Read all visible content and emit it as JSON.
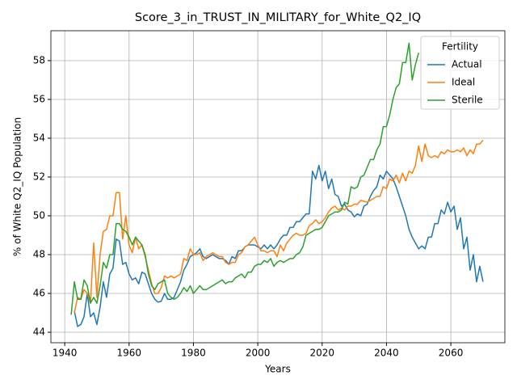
{
  "chart_data": {
    "type": "line",
    "title": "Score_3_in_TRUST_IN_MILITARY_for_White_Q2_IQ",
    "xlabel": "Years",
    "ylabel": "% of White Q2_IQ Population",
    "legend_title": "Fertility",
    "legend": "upper right",
    "grid": true,
    "xlim": [
      1935.7,
      2076.8
    ],
    "ylim": [
      43.46,
      59.54
    ],
    "xticks": [
      1940,
      1960,
      1980,
      2000,
      2020,
      2040,
      2060
    ],
    "yticks": [
      44,
      46,
      48,
      50,
      52,
      54,
      56,
      58
    ],
    "x": [
      1942,
      1943,
      1944,
      1945,
      1946,
      1947,
      1948,
      1949,
      1950,
      1951,
      1952,
      1953,
      1954,
      1955,
      1956,
      1957,
      1958,
      1959,
      1960,
      1961,
      1962,
      1963,
      1964,
      1965,
      1966,
      1967,
      1968,
      1969,
      1970,
      1971,
      1972,
      1973,
      1974,
      1975,
      1976,
      1977,
      1978,
      1979,
      1980,
      1981,
      1982,
      1983,
      1984,
      1985,
      1986,
      1987,
      1988,
      1989,
      1990,
      1991,
      1992,
      1993,
      1994,
      1995,
      1996,
      1997,
      1998,
      1999,
      2000,
      2001,
      2002,
      2003,
      2004,
      2005,
      2006,
      2007,
      2008,
      2009,
      2010,
      2011,
      2012,
      2013,
      2014,
      2015,
      2016,
      2017,
      2018,
      2019,
      2020,
      2021,
      2022,
      2023,
      2024,
      2025,
      2026,
      2027,
      2028,
      2029,
      2030,
      2031,
      2032,
      2033,
      2034,
      2035,
      2036,
      2037,
      2038,
      2039,
      2040,
      2041,
      2042,
      2043,
      2044,
      2045,
      2046,
      2047,
      2048,
      2049,
      2050,
      2051,
      2052,
      2053,
      2054,
      2055,
      2056,
      2057,
      2058,
      2059,
      2060,
      2061,
      2062,
      2063,
      2064,
      2065,
      2066,
      2067,
      2068,
      2069,
      2070
    ],
    "series": [
      {
        "name": "Actual",
        "color": "#1f77b4",
        "values": [
          null,
          45.1,
          44.3,
          44.4,
          44.8,
          46.0,
          44.8,
          45.0,
          44.4,
          45.3,
          46.6,
          45.8,
          47.0,
          47.3,
          48.8,
          48.7,
          47.5,
          47.6,
          47.0,
          46.7,
          46.8,
          46.5,
          47.1,
          47.0,
          46.5,
          46.0,
          45.7,
          45.55,
          45.6,
          46.0,
          45.7,
          45.7,
          45.8,
          46.2,
          46.6,
          47.2,
          47.5,
          47.9,
          48.0,
          48.1,
          48.3,
          47.9,
          47.8,
          47.9,
          48.0,
          47.9,
          47.8,
          47.8,
          47.7,
          47.5,
          47.9,
          47.8,
          48.2,
          48.2,
          48.4,
          48.5,
          48.5,
          48.5,
          48.4,
          48.3,
          48.5,
          48.3,
          48.5,
          48.3,
          48.5,
          48.8,
          49.0,
          49.0,
          49.4,
          49.4,
          49.7,
          49.7,
          49.9,
          50.1,
          50.1,
          52.3,
          51.9,
          52.6,
          51.8,
          52.3,
          51.4,
          51.9,
          51.1,
          51.0,
          50.5,
          50.6,
          50.3,
          50.2,
          49.95,
          50.1,
          50.0,
          50.5,
          50.6,
          51.0,
          51.3,
          51.5,
          52.1,
          51.9,
          52.3,
          52.1,
          51.9,
          51.5,
          51.0,
          50.5,
          50.0,
          49.3,
          48.9,
          48.6,
          48.3,
          48.45,
          48.3,
          48.9,
          48.9,
          49.6,
          49.6,
          50.3,
          50.1,
          50.7,
          50.2,
          50.5,
          49.3,
          49.9,
          48.3,
          48.9,
          47.2,
          48.0,
          46.6,
          47.4,
          46.6
        ]
      },
      {
        "name": "Ideal",
        "color": "#ff7f0e",
        "values": [
          null,
          45.0,
          45.8,
          45.7,
          46.2,
          46.0,
          45.5,
          48.6,
          45.8,
          48.0,
          49.2,
          49.3,
          50.0,
          50.0,
          51.2,
          51.2,
          48.8,
          50.0,
          48.5,
          48.1,
          48.9,
          48.3,
          48.5,
          47.9,
          47.2,
          46.5,
          46.0,
          46.0,
          46.3,
          46.9,
          46.8,
          46.9,
          46.8,
          46.9,
          47.0,
          47.8,
          47.7,
          48.3,
          48.0,
          48.0,
          48.1,
          47.7,
          47.9,
          48.0,
          48.1,
          48.0,
          47.9,
          47.9,
          47.6,
          47.5,
          47.6,
          47.6,
          48.0,
          48.1,
          48.4,
          48.5,
          48.7,
          48.9,
          48.5,
          48.2,
          48.2,
          48.1,
          48.2,
          48.2,
          47.9,
          48.5,
          48.2,
          48.6,
          48.8,
          49.0,
          49.1,
          49.0,
          49.0,
          49.1,
          49.5,
          49.6,
          49.8,
          49.6,
          49.7,
          49.9,
          50.2,
          50.4,
          50.5,
          50.3,
          50.4,
          50.3,
          50.5,
          50.5,
          50.6,
          50.6,
          50.8,
          50.75,
          50.7,
          50.8,
          50.9,
          51.0,
          51.0,
          51.5,
          51.4,
          51.9,
          51.8,
          52.1,
          51.7,
          52.2,
          51.8,
          52.3,
          52.2,
          52.6,
          53.6,
          52.8,
          53.7,
          53.1,
          53.0,
          53.1,
          53.0,
          53.3,
          53.2,
          53.4,
          53.3,
          53.3,
          53.4,
          53.3,
          53.5,
          53.1,
          53.4,
          53.2,
          53.7,
          53.7,
          53.9
        ]
      },
      {
        "name": "Sterile",
        "color": "#2ca02c",
        "values": [
          44.9,
          46.6,
          45.7,
          45.7,
          46.7,
          46.4,
          45.5,
          45.8,
          45.5,
          46.4,
          47.6,
          47.3,
          48.0,
          48.0,
          49.6,
          49.6,
          49.3,
          49.2,
          48.9,
          48.5,
          48.9,
          48.7,
          48.5,
          48.0,
          47.0,
          46.4,
          46.2,
          46.5,
          46.6,
          46.7,
          46.0,
          45.8,
          45.7,
          45.8,
          46.0,
          46.3,
          46.1,
          46.4,
          46.0,
          46.2,
          46.4,
          46.2,
          46.2,
          46.3,
          46.4,
          46.5,
          46.6,
          46.7,
          46.5,
          46.6,
          46.6,
          46.8,
          46.9,
          47.0,
          46.8,
          47.1,
          47.1,
          47.4,
          47.5,
          47.5,
          47.7,
          47.6,
          47.8,
          47.4,
          47.6,
          47.7,
          47.6,
          47.7,
          47.8,
          47.8,
          48.0,
          48.1,
          48.4,
          49.0,
          49.1,
          49.2,
          49.3,
          49.3,
          49.4,
          49.7,
          50.0,
          50.1,
          50.2,
          50.2,
          50.3,
          50.7,
          50.6,
          51.5,
          51.4,
          51.5,
          52.0,
          52.1,
          52.5,
          52.9,
          52.9,
          53.4,
          53.7,
          54.6,
          54.6,
          55.2,
          56.0,
          56.6,
          56.8,
          57.9,
          57.9,
          58.9,
          57.0,
          57.8,
          58.4,
          null,
          null,
          null,
          null,
          null,
          null,
          null,
          null,
          null,
          null,
          null,
          null,
          null,
          null,
          null,
          null,
          null,
          null,
          null,
          null
        ]
      }
    ]
  }
}
